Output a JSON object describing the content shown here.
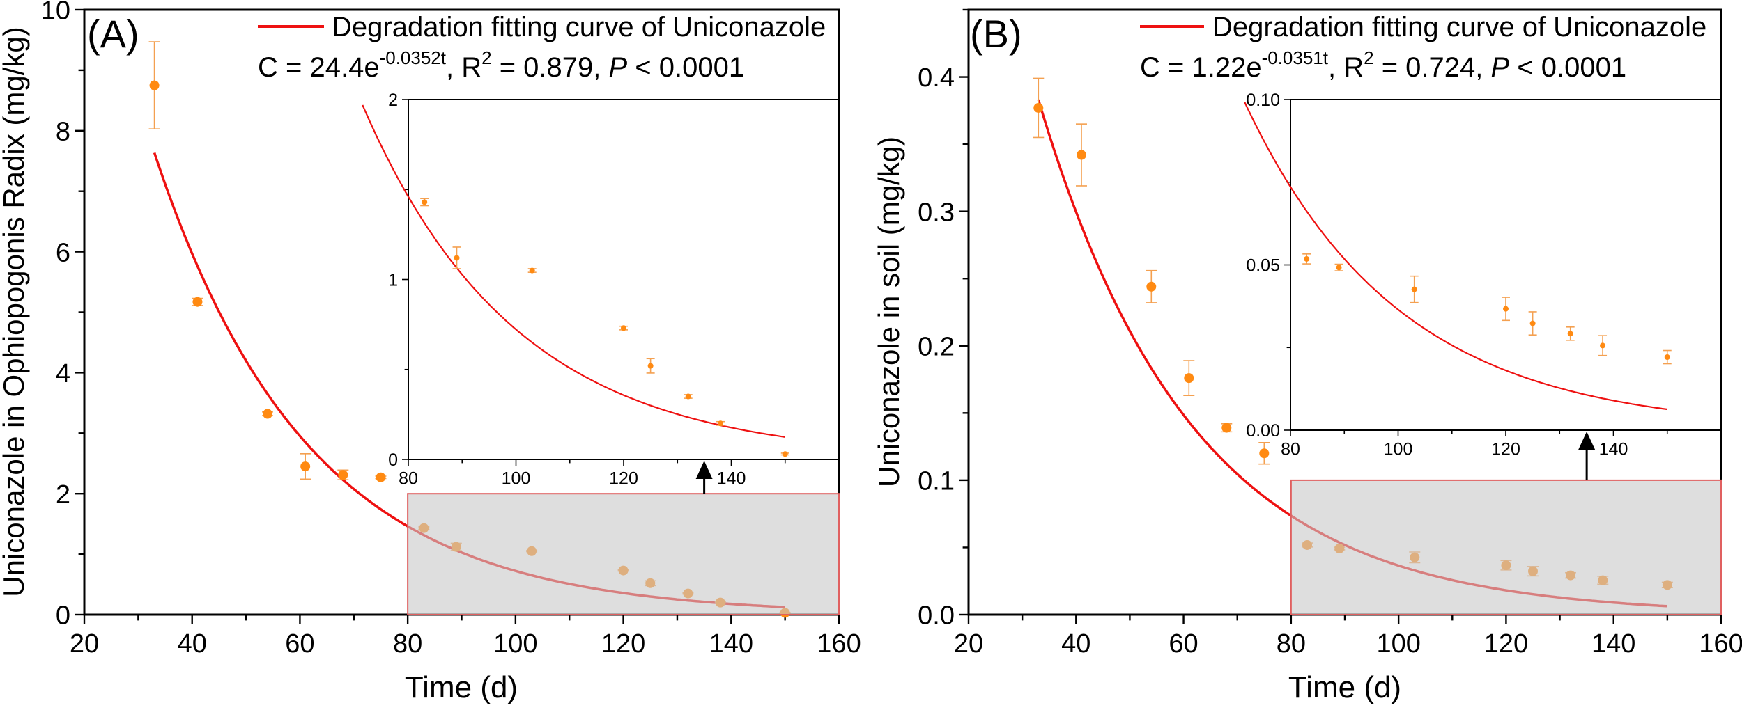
{
  "colors": {
    "curve": "#ee1111",
    "point": "#ff8a12",
    "errorbar": "#f4a050",
    "shade": "#c8c8c8",
    "shade_border": "#e06060"
  },
  "chart_data": [
    {
      "type": "scatter",
      "panel_label": "(A)",
      "legend": "Degradation fitting curve of Uniconazole",
      "equation": {
        "prefix": "C = 24.4e",
        "exponent": "-0.0352t",
        "mid": ", R",
        "r2sup": "2",
        "rest": " = 0.879, ",
        "p": "P",
        "tail": " < 0.0001"
      },
      "fit": {
        "a": 24.4,
        "k": 0.0352,
        "t_range": [
          33,
          150
        ]
      },
      "xlabel": "Time (d)",
      "ylabel": "Uniconazole in Ophiopogonis Radix (mg/kg)",
      "xlim": [
        20,
        160
      ],
      "ylim": [
        0,
        10
      ],
      "xticks": [
        "20",
        "40",
        "60",
        "80",
        "100",
        "120",
        "140",
        "160"
      ],
      "yticks": [
        "0",
        "2",
        "4",
        "6",
        "8",
        "10"
      ],
      "x": [
        33,
        41,
        54,
        61,
        68,
        75,
        83,
        89,
        103,
        120,
        125,
        132,
        138,
        150
      ],
      "y": [
        8.75,
        5.17,
        3.32,
        2.45,
        2.31,
        2.27,
        1.43,
        1.12,
        1.05,
        0.73,
        0.52,
        0.35,
        0.2,
        0.03
      ],
      "err": [
        0.72,
        0.06,
        0.03,
        0.21,
        0.08,
        0.02,
        0.02,
        0.06,
        0.01,
        0.01,
        0.04,
        0.01,
        0.01,
        0.005
      ],
      "zoom_region": {
        "x": [
          80,
          160
        ],
        "y": [
          0,
          2
        ]
      },
      "arrow_x": 135,
      "inset": {
        "xlim": [
          80,
          160
        ],
        "ylim": [
          0,
          2
        ],
        "xticks": [
          "80",
          "100",
          "120",
          "140"
        ],
        "yticks": [
          "0",
          "1",
          "2"
        ]
      }
    },
    {
      "type": "scatter",
      "panel_label": "(B)",
      "legend": "Degradation fitting curve of Uniconazole",
      "equation": {
        "prefix": "C = 1.22e",
        "exponent": "-0.0351t",
        "mid": ", R",
        "r2sup": "2",
        "rest": " = 0.724, ",
        "p": "P",
        "tail": " < 0.0001"
      },
      "fit": {
        "a": 1.22,
        "k": 0.0351,
        "t_range": [
          33,
          150
        ]
      },
      "xlabel": "Time (d)",
      "ylabel": "Uniconazole in soil (mg/kg)",
      "xlim": [
        20,
        160
      ],
      "ylim": [
        0,
        0.45
      ],
      "xticks": [
        "20",
        "40",
        "60",
        "80",
        "100",
        "120",
        "140",
        "160"
      ],
      "yticks": [
        "0.0",
        "0.1",
        "0.2",
        "0.3",
        "0.4"
      ],
      "x": [
        33,
        41,
        54,
        61,
        68,
        75,
        83,
        89,
        103,
        120,
        125,
        132,
        138,
        150
      ],
      "y": [
        0.377,
        0.342,
        0.244,
        0.176,
        0.139,
        0.12,
        0.0518,
        0.0492,
        0.0426,
        0.0367,
        0.0323,
        0.0292,
        0.0256,
        0.0221
      ],
      "err": [
        0.022,
        0.023,
        0.012,
        0.013,
        0.003,
        0.008,
        0.0015,
        0.001,
        0.004,
        0.0035,
        0.0035,
        0.002,
        0.003,
        0.002
      ],
      "zoom_region": {
        "x": [
          80,
          160
        ],
        "y": [
          0,
          0.1
        ]
      },
      "arrow_x": 135,
      "inset": {
        "xlim": [
          80,
          160
        ],
        "ylim": [
          0,
          0.1
        ],
        "xticks": [
          "80",
          "100",
          "120",
          "140"
        ],
        "yticks": [
          "0.00",
          "0.05",
          "0.10"
        ]
      }
    }
  ]
}
